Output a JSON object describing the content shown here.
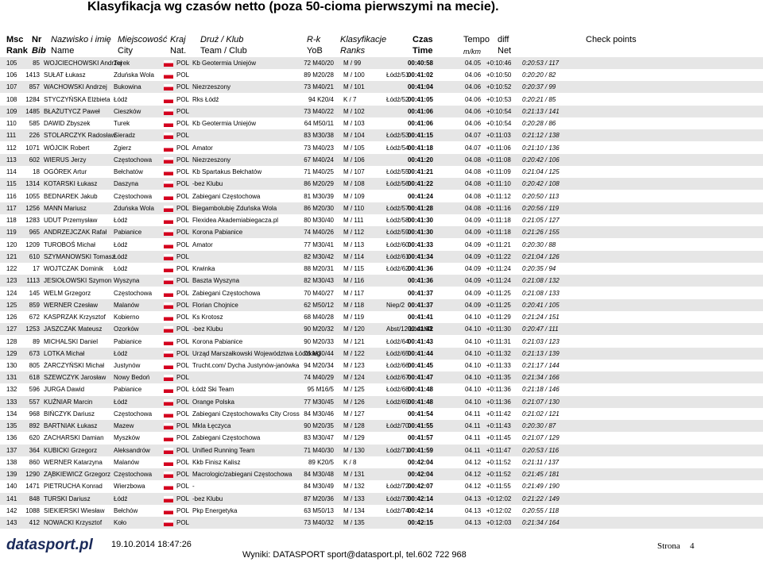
{
  "title": "Klasyfikacja wg czasów netto (poza 50-cioma pierwszymi na mecie).",
  "headers": [
    {
      "top": "Msc",
      "bottom": "Rank"
    },
    {
      "top": "Nr",
      "bottom": "Bib"
    },
    {
      "top": "Nazwisko i imię",
      "bottom": "Name"
    },
    {
      "top": "Miejscowość",
      "bottom": "City"
    },
    {
      "top": "Kraj",
      "bottom": "Nat."
    },
    {
      "top": "Druż / Klub",
      "bottom": "Team / Club"
    },
    {
      "top": "R-k",
      "bottom": "YoB"
    },
    {
      "top": "Klasyfikacje",
      "bottom": "Ranks"
    },
    {
      "top": "Czas",
      "bottom": "Time"
    },
    {
      "top": "Tempo",
      "bottom": "m/km"
    },
    {
      "top": "diff",
      "bottom": "Net"
    },
    {
      "top": "Check points"
    }
  ],
  "rows": [
    {
      "rank": "105",
      "bib": "85",
      "name": "WOJCIECHOWSKI Andrzej",
      "city": "Turek",
      "nat": "POL",
      "team": "Kb Geotermia Uniejów",
      "yob": "72 M40/20",
      "rank1": "M / 99",
      "time": "00:40:58",
      "pace": "04.05",
      "diff": "+0:10:46",
      "net": "0:20:53 / 117"
    },
    {
      "rank": "106",
      "bib": "1413",
      "name": "SUŁAT Łukasz",
      "city": "Zduńska Wola",
      "nat": "POL",
      "yob": "89 M20/28",
      "rank1": "M / 100",
      "rank2": "Łódź/51",
      "time": "00:41:02",
      "pace": "04.06",
      "diff": "+0:10:50",
      "net": "0:20:20 / 82"
    },
    {
      "rank": "107",
      "bib": "857",
      "name": "WACHOWSKI Andrzej",
      "city": "Bukowina",
      "nat": "POL",
      "team": "Niezrzeszony",
      "yob": "73 M40/21",
      "rank1": "M / 101",
      "time": "00:41:04",
      "pace": "04.06",
      "diff": "+0:10:52",
      "net": "0:20:37 / 99"
    },
    {
      "rank": "108",
      "bib": "1284",
      "name": "STYCZYŃSKA Elżbieta",
      "city": "Łódź",
      "nat": "POL",
      "team": "Rks Łódź",
      "yob": "94 K20/4",
      "rank1": "K / 7",
      "rank2": "Łódź/52",
      "time": "00:41:05",
      "pace": "04.06",
      "diff": "+0:10:53",
      "net": "0:20:21 / 85"
    },
    {
      "rank": "109",
      "bib": "1485",
      "name": "BŁAŻUTYCZ Paweł",
      "city": "Cieszków",
      "nat": "POL",
      "yob": "73 M40/22",
      "rank1": "M / 102",
      "time": "00:41:06",
      "pace": "04.06",
      "diff": "+0:10:54",
      "net": "0:21:13 / 141"
    },
    {
      "rank": "110",
      "bib": "585",
      "name": "DAWID Zbyszek",
      "city": "Turek",
      "nat": "POL",
      "team": "Kb Geotermia Uniejów",
      "yob": "64 M50/11",
      "rank1": "M / 103",
      "time": "00:41:06",
      "pace": "04.06",
      "diff": "+0:10:54",
      "net": "0:20:28 / 86"
    },
    {
      "rank": "111",
      "bib": "226",
      "name": "STOLARCZYK Radosław",
      "city": "Sieradz",
      "nat": "POL",
      "yob": "83 M30/38",
      "rank1": "M / 104",
      "rank2": "Łódź/53",
      "time": "00:41:15",
      "pace": "04.07",
      "diff": "+0:11:03",
      "net": "0:21:12 / 138"
    },
    {
      "rank": "112",
      "bib": "1071",
      "name": "WÓJCIK Robert",
      "city": "Zgierz",
      "nat": "POL",
      "team": "Amator",
      "yob": "73 M40/23",
      "rank1": "M / 105",
      "rank2": "Łódź/54",
      "time": "00:41:18",
      "pace": "04.07",
      "diff": "+0:11:06",
      "net": "0:21:10 / 136"
    },
    {
      "rank": "113",
      "bib": "602",
      "name": "WIERUS Jerzy",
      "city": "Częstochowa",
      "nat": "POL",
      "team": "Niezrzeszony",
      "yob": "67 M40/24",
      "rank1": "M / 106",
      "time": "00:41:20",
      "pace": "04.08",
      "diff": "+0:11:08",
      "net": "0:20:42 / 106"
    },
    {
      "rank": "114",
      "bib": "18",
      "name": "OGÓREK Artur",
      "city": "Bełchatów",
      "nat": "POL",
      "team": "Kb Spartakus Bełchatów",
      "yob": "71 M40/25",
      "rank1": "M / 107",
      "rank2": "Łódź/55",
      "time": "00:41:21",
      "pace": "04.08",
      "diff": "+0:11:09",
      "net": "0:21:04 / 125"
    },
    {
      "rank": "115",
      "bib": "1314",
      "name": "KOTARSKI Łukasz",
      "city": "Daszyna",
      "nat": "POL",
      "team": "-bez Klubu",
      "yob": "86 M20/29",
      "rank1": "M / 108",
      "rank2": "Łódź/56",
      "time": "00:41:22",
      "pace": "04.08",
      "diff": "+0:11:10",
      "net": "0:20:42 / 108"
    },
    {
      "rank": "116",
      "bib": "1055",
      "name": "BEDNAREK Jakub",
      "city": "Częstochowa",
      "nat": "POL",
      "team": "Zabiegani Częstochowa",
      "yob": "81 M30/39",
      "rank1": "M / 109",
      "time": "00:41:24",
      "pace": "04.08",
      "diff": "+0:11:12",
      "net": "0:20:50 / 113"
    },
    {
      "rank": "117",
      "bib": "1256",
      "name": "MANN Mariusz",
      "city": "Zduńska Wola",
      "nat": "POL",
      "team": "Biegambolubię Zduńska Wola",
      "yob": "86 M20/30",
      "rank1": "M / 110",
      "rank2": "Łódź/57",
      "time": "00:41:28",
      "pace": "04.08",
      "diff": "+0:11:16",
      "net": "0:20:56 / 119"
    },
    {
      "rank": "118",
      "bib": "1283",
      "name": "UDUT Przemysław",
      "city": "Łódź",
      "nat": "POL",
      "team": "Flexidea Akademiabiegacza.pl",
      "yob": "80 M30/40",
      "rank1": "M / 111",
      "rank2": "Łódź/58",
      "time": "00:41:30",
      "pace": "04.09",
      "diff": "+0:11:18",
      "net": "0:21:05 / 127"
    },
    {
      "rank": "119",
      "bib": "965",
      "name": "ANDRZEJCZAK Rafał",
      "city": "Pabianice",
      "nat": "POL",
      "team": "Korona Pabianice",
      "yob": "74 M40/26",
      "rank1": "M / 112",
      "rank2": "Łódź/59",
      "time": "00:41:30",
      "pace": "04.09",
      "diff": "+0:11:18",
      "net": "0:21:26 / 155"
    },
    {
      "rank": "120",
      "bib": "1209",
      "name": "TUROBOŚ Michał",
      "city": "Łódź",
      "nat": "POL",
      "team": "Amator",
      "yob": "77 M30/41",
      "rank1": "M / 113",
      "rank2": "Łódź/60",
      "time": "00:41:33",
      "pace": "04.09",
      "diff": "+0:11:21",
      "net": "0:20:30 / 88"
    },
    {
      "rank": "121",
      "bib": "610",
      "name": "SZYMANOWSKI Tomasz",
      "city": "Łódź",
      "nat": "POL",
      "yob": "82 M30/42",
      "rank1": "M / 114",
      "rank2": "Łódź/61",
      "time": "00:41:34",
      "pace": "04.09",
      "diff": "+0:11:22",
      "net": "0:21:04 / 126"
    },
    {
      "rank": "122",
      "bib": "17",
      "name": "WOJTCZAK Dominik",
      "city": "Łódź",
      "nat": "POL",
      "team": "Krwinka",
      "yob": "88 M20/31",
      "rank1": "M / 115",
      "rank2": "Łódź/62",
      "time": "00:41:36",
      "pace": "04.09",
      "diff": "+0:11:24",
      "net": "0:20:35 / 94"
    },
    {
      "rank": "123",
      "bib": "1113",
      "name": "JESIOŁOWSKI Szymon",
      "city": "Wyszyna",
      "nat": "POL",
      "team": "Baszta Wyszyna",
      "yob": "82 M30/43",
      "rank1": "M / 116",
      "time": "00:41:36",
      "pace": "04.09",
      "diff": "+0:11:24",
      "net": "0:21:08 / 132"
    },
    {
      "rank": "124",
      "bib": "145",
      "name": "WELM Grzegorz",
      "city": "Częstochowa",
      "nat": "POL",
      "team": "Zabiegani Częstochowa",
      "yob": "70 M40/27",
      "rank1": "M / 117",
      "time": "00:41:37",
      "pace": "04.09",
      "diff": "+0:11:25",
      "net": "0:21:08 / 133"
    },
    {
      "rank": "125",
      "bib": "859",
      "name": "WERNER Czesław",
      "city": "Malanów",
      "nat": "POL",
      "team": "Florian Chojnice",
      "yob": "62 M50/12",
      "rank1": "M / 118",
      "rank2": "Niep/2",
      "time": "00:41:37",
      "pace": "04.09",
      "diff": "+0:11:25",
      "net": "0:20:41 / 105"
    },
    {
      "rank": "126",
      "bib": "672",
      "name": "KASPRZAK Krzysztof",
      "city": "Kobierno",
      "nat": "POL",
      "team": "Ks Krotosz",
      "yob": "68 M40/28",
      "rank1": "M / 119",
      "time": "00:41:41",
      "pace": "04.10",
      "diff": "+0:11:29",
      "net": "0:21:24 / 151"
    },
    {
      "rank": "127",
      "bib": "1253",
      "name": "JASZCZAK Mateusz",
      "city": "Ozorków",
      "nat": "POL",
      "team": "-bez Klubu",
      "yob": "90 M20/32",
      "rank1": "M / 120",
      "rank2": "Abst/12 Łódź/63",
      "time": "00:41:42",
      "pace": "04.10",
      "diff": "+0:11:30",
      "net": "0:20:47 / 111"
    },
    {
      "rank": "128",
      "bib": "89",
      "name": "MICHALSKI Daniel",
      "city": "Pabianice",
      "nat": "POL",
      "team": "Korona Pabianice",
      "yob": "90 M20/33",
      "rank1": "M / 121",
      "rank2": "Łódź/64",
      "time": "00:41:43",
      "pace": "04.10",
      "diff": "+0:11:31",
      "net": "0:21:03 / 123"
    },
    {
      "rank": "129",
      "bib": "673",
      "name": "LOTKA Michał",
      "city": "Łódź",
      "nat": "POL",
      "team": "Urząd Marszałkowski Województwa Łódzkieg",
      "yob": "76 M30/44",
      "rank1": "M / 122",
      "rank2": "Łódź/65",
      "time": "00:41:44",
      "pace": "04.10",
      "diff": "+0:11:32",
      "net": "0:21:13 / 139"
    },
    {
      "rank": "130",
      "bib": "805",
      "name": "ŻARCZYŃSKI Michał",
      "city": "Justynów",
      "nat": "POL",
      "team": "Trucht.com/ Dycha Justynów-janówka",
      "yob": "94 M20/34",
      "rank1": "M / 123",
      "rank2": "Łódź/66",
      "time": "00:41:45",
      "pace": "04.10",
      "diff": "+0:11:33",
      "net": "0:21:17 / 144"
    },
    {
      "rank": "131",
      "bib": "618",
      "name": "SZEWCZYK Jarosław",
      "city": "Nowy Bedoń",
      "nat": "POL",
      "yob": "74 M40/29",
      "rank1": "M / 124",
      "rank2": "Łódź/67",
      "time": "00:41:47",
      "pace": "04.10",
      "diff": "+0:11:35",
      "net": "0:21:34 / 166"
    },
    {
      "rank": "132",
      "bib": "596",
      "name": "JURGA Dawid",
      "city": "Pabianice",
      "nat": "POL",
      "team": "Łódź Ski Team",
      "yob": "95 M16/5",
      "rank1": "M / 125",
      "rank2": "Łódź/68",
      "time": "00:41:48",
      "pace": "04.10",
      "diff": "+0:11:36",
      "net": "0:21:18 / 146"
    },
    {
      "rank": "133",
      "bib": "557",
      "name": "KUŹNIAR Marcin",
      "city": "Łódź",
      "nat": "POL",
      "team": "Orange Polska",
      "yob": "77 M30/45",
      "rank1": "M / 126",
      "rank2": "Łódź/69",
      "time": "00:41:48",
      "pace": "04.10",
      "diff": "+0:11:36",
      "net": "0:21:07 / 130"
    },
    {
      "rank": "134",
      "bib": "968",
      "name": "BIŃCZYK Dariusz",
      "city": "Częstochowa",
      "nat": "POL",
      "team": "Zabiegani Częstochowa/ks City Cross",
      "yob": "84 M30/46",
      "rank1": "M / 127",
      "time": "00:41:54",
      "pace": "04.11",
      "diff": "+0:11:42",
      "net": "0:21:02 / 121"
    },
    {
      "rank": "135",
      "bib": "892",
      "name": "BARTNIAK Łukasz",
      "city": "Mazew",
      "nat": "POL",
      "team": "Mkla Łęczyca",
      "yob": "90 M20/35",
      "rank1": "M / 128",
      "rank2": "Łódź/70",
      "time": "00:41:55",
      "pace": "04.11",
      "diff": "+0:11:43",
      "net": "0:20:30 / 87"
    },
    {
      "rank": "136",
      "bib": "620",
      "name": "ZACHARSKI Damian",
      "city": "Myszków",
      "nat": "POL",
      "team": "Zabiegani Częstochowa",
      "yob": "83 M30/47",
      "rank1": "M / 129",
      "time": "00:41:57",
      "pace": "04.11",
      "diff": "+0:11:45",
      "net": "0:21:07 / 129"
    },
    {
      "rank": "137",
      "bib": "364",
      "name": "KUBICKI Grzegorz",
      "city": "Aleksandrów",
      "nat": "POL",
      "team": "Unified Running Team",
      "yob": "71 M40/30",
      "rank1": "M / 130",
      "rank2": "Łódź/71",
      "time": "00:41:59",
      "pace": "04.11",
      "diff": "+0:11:47",
      "net": "0:20:53 / 116"
    },
    {
      "rank": "138",
      "bib": "860",
      "name": "WERNER Katarzyna",
      "city": "Malanów",
      "nat": "POL",
      "team": "Kkb Finisz Kalisz",
      "yob": "89 K20/5",
      "rank1": "K / 8",
      "time": "00:42:04",
      "pace": "04.12",
      "diff": "+0:11:52",
      "net": "0:21:11 / 137"
    },
    {
      "rank": "139",
      "bib": "1290",
      "name": "ZĄBKIEWICZ Grzegorz",
      "city": "Częstochowa",
      "nat": "POL",
      "team": "Macrologic/zabiegani Częstochowa",
      "yob": "84 M30/48",
      "rank1": "M / 131",
      "time": "00:42:04",
      "pace": "04.12",
      "diff": "+0:11:52",
      "net": "0:21:45 / 181"
    },
    {
      "rank": "140",
      "bib": "1471",
      "name": "PIETRUCHA Konrad",
      "city": "Wierzbowa",
      "nat": "POL",
      "team": "-",
      "yob": "84 M30/49",
      "rank1": "M / 132",
      "rank2": "Łódź/72",
      "time": "00:42:07",
      "pace": "04.12",
      "diff": "+0:11:55",
      "net": "0:21:49 / 190"
    },
    {
      "rank": "141",
      "bib": "848",
      "name": "TURSKI Dariusz",
      "city": "Łódź",
      "nat": "POL",
      "team": "-bez Klubu",
      "yob": "87 M20/36",
      "rank1": "M / 133",
      "rank2": "Łódź/73",
      "time": "00:42:14",
      "pace": "04.13",
      "diff": "+0:12:02",
      "net": "0:21:22 / 149"
    },
    {
      "rank": "142",
      "bib": "1088",
      "name": "SIEKIERSKI Wiesław",
      "city": "Bełchów",
      "nat": "POL",
      "team": "Pkp Energetyka",
      "yob": "63 M50/13",
      "rank1": "M / 134",
      "rank2": "Łódź/74",
      "time": "00:42:14",
      "pace": "04.13",
      "diff": "+0:12:02",
      "net": "0:20:55 / 118"
    },
    {
      "rank": "143",
      "bib": "412",
      "name": "NOWACKI Krzysztof",
      "city": "Koło",
      "nat": "POL",
      "yob": "73 M40/32",
      "rank1": "M / 135",
      "time": "00:42:15",
      "pace": "04.13",
      "diff": "+0:12:03",
      "net": "0:21:34 / 164"
    }
  ],
  "footer": {
    "logo": "datasport.pl",
    "timestamp": "19.10.2014 18:47:26",
    "contact": "Wyniki: DATASPORT sport@datasport.pl, tel.602 722 968",
    "page_label": "Strona",
    "page_number": "4"
  }
}
